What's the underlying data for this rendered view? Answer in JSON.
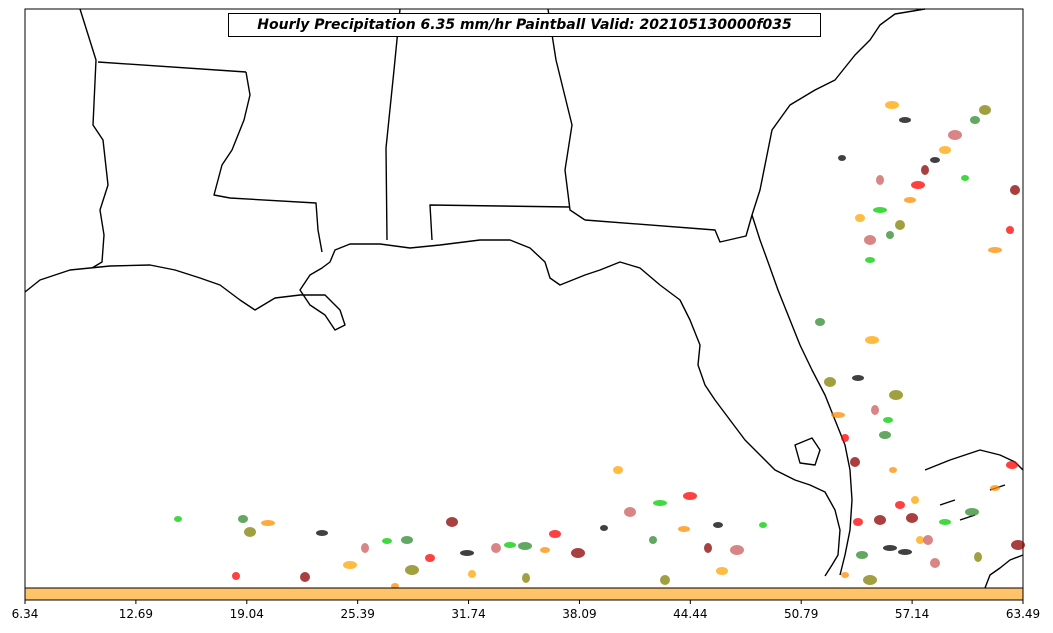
{
  "map": {
    "title": "Hourly Precipitation 6.35 mm/hr Paintball Valid: 202105130000f035",
    "region": "Southeastern United States / Gulf of Mexico",
    "land_color": "#ffffff",
    "border_color": "#000000"
  },
  "colorbar": {
    "color": "#ffc36a",
    "tick_labels": [
      "6.34",
      "12.69",
      "19.04",
      "25.39",
      "31.74",
      "38.09",
      "44.44",
      "50.79",
      "57.14",
      "63.49"
    ]
  },
  "paintball_colors": [
    "#00cc00",
    "#2e8b2e",
    "#808000",
    "#ff8c00",
    "#ff0000",
    "#8b0000",
    "#000000",
    "#ffa500",
    "#cd5c5c"
  ]
}
